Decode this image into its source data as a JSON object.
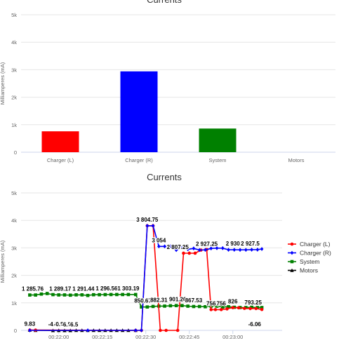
{
  "chart_data": [
    {
      "type": "bar",
      "title": "Currents",
      "ylabel": "Milliamperes (mA)",
      "categories": [
        "Charger (L)",
        "Charger (R)",
        "System",
        "Motors"
      ],
      "values": [
        760,
        2940,
        860,
        0
      ],
      "colors": [
        "#ff0000",
        "#0000ff",
        "#008000",
        "#000000"
      ],
      "ylim": [
        0,
        5000
      ],
      "yticks": [
        "0",
        "1k",
        "2k",
        "3k",
        "4k",
        "5k"
      ],
      "grid": true
    },
    {
      "type": "line",
      "title": "Currents",
      "ylabel": "Milliamperes (mA)",
      "ylim": [
        0,
        5000
      ],
      "yticks": [
        "0",
        "1k",
        "2k",
        "3k",
        "4k",
        "5k"
      ],
      "xticks": [
        "00:22:00",
        "00:22:15",
        "00:22:30",
        "00:22:45",
        "00:23:00"
      ],
      "xtick_values": [
        90,
        105,
        120,
        135,
        150
      ],
      "x_unit": "seconds after 00:20:30",
      "legend_position": "right",
      "grid": true,
      "series": [
        {
          "name": "Charger (L)",
          "color": "#ff0000",
          "marker": "circle",
          "x": [
            80,
            82,
            116.5,
            118.5,
            120.5,
            122.5,
            125,
            127,
            131,
            133,
            135,
            137,
            139,
            141,
            142.5,
            144,
            146,
            148,
            150,
            152,
            154,
            156,
            158,
            160
          ],
          "y": [
            9.83,
            9.83,
            0,
            0,
            3804.75,
            3804.75,
            0,
            0,
            0,
            2807.25,
            2807.25,
            2807.25,
            2920,
            2940,
            756,
            756,
            756,
            780,
            826,
            820,
            800,
            793.25,
            793.25,
            760
          ]
        },
        {
          "name": "Charger (R)",
          "color": "#0000ff",
          "marker": "diamond",
          "x": [
            80,
            100,
            116.5,
            118.5,
            120.5,
            122.5,
            124.5,
            126.5,
            128.5,
            130.5,
            132.5,
            134.5,
            136.5,
            138.5,
            140.5,
            142.5,
            144.5,
            146.5,
            148.5,
            150.5,
            152.5,
            154.5,
            156.5,
            158.5,
            160
          ],
          "y": [
            0,
            0,
            0,
            0,
            3804.75,
            3804.75,
            3054,
            3054,
            3054,
            2920,
            3000,
            2950,
            2980,
            2920,
            2927.25,
            2980,
            2990,
            2990,
            2930,
            2930,
            2927.5,
            2927.5,
            2935,
            2935,
            2960
          ]
        },
        {
          "name": "System",
          "color": "#008000",
          "marker": "square",
          "x": [
            80,
            82,
            84,
            86,
            88,
            90,
            92,
            94,
            96,
            98,
            100,
            102,
            104,
            106,
            108,
            110,
            112,
            114,
            116.5,
            118.5,
            120.5,
            122.5,
            124.5,
            126.5,
            128.5,
            130.5,
            132.5,
            134.5,
            136.5,
            138.5,
            140.5,
            142.5,
            144.5,
            146.5,
            148.5,
            150.5,
            152.5,
            154.5,
            156.5,
            158.5,
            160
          ],
          "y": [
            1285.76,
            1285.76,
            1320,
            1340,
            1300,
            1289.17,
            1289.17,
            1280,
            1291.44,
            1291.44,
            1270,
            1296.56,
            1296.56,
            1300,
            1303.19,
            1303.19,
            1303.19,
            1303.19,
            1303.19,
            850.67,
            850.67,
            870,
            882.31,
            882.31,
            895,
            901.26,
            901.26,
            880,
            867.53,
            867.53,
            860,
            880,
            880,
            850,
            860,
            840,
            830,
            830,
            840,
            830,
            830
          ]
        },
        {
          "name": "Motors",
          "color": "#000000",
          "marker": "triangle",
          "x": [
            80,
            82,
            88,
            90,
            92,
            94,
            96,
            98,
            100,
            102,
            104,
            106,
            108,
            110,
            112,
            114,
            116.5
          ],
          "y": [
            9.83,
            0,
            -4.3,
            -0.88,
            -6.5,
            -6.5,
            0,
            0,
            0,
            0,
            0,
            0,
            0,
            0,
            0,
            0,
            0
          ]
        }
      ],
      "data_labels": [
        {
          "text": "9.83",
          "x": 80,
          "y": 9.83
        },
        {
          "text": "-4.3",
          "x": 88,
          "y": -4.3
        },
        {
          "text": "-0.88",
          "x": 90.5,
          "y": -0.88
        },
        {
          "text": "-6.5",
          "x": 92.5,
          "y": -6.5
        },
        {
          "text": "-6.5",
          "x": 95,
          "y": -6.5
        },
        {
          "text": "1 285.76",
          "x": 81,
          "y": 1285.76
        },
        {
          "text": "1 289.17",
          "x": 90.5,
          "y": 1289.17
        },
        {
          "text": "1 291.44",
          "x": 98.5,
          "y": 1291.44
        },
        {
          "text": "1 296.56",
          "x": 106.5,
          "y": 1296.56
        },
        {
          "text": "1 303.19",
          "x": 114,
          "y": 1303.19
        },
        {
          "text": "3 804.75",
          "x": 120.5,
          "y": 3804.75
        },
        {
          "text": "3 054",
          "x": 124.5,
          "y": 3054
        },
        {
          "text": "850.67",
          "x": 119,
          "y": 850.67
        },
        {
          "text": "882.31",
          "x": 124.5,
          "y": 882.31
        },
        {
          "text": "901.26",
          "x": 131,
          "y": 901.26
        },
        {
          "text": "867.53",
          "x": 136.5,
          "y": 867.53
        },
        {
          "text": "2 807.25",
          "x": 131,
          "y": 2807.25
        },
        {
          "text": "2 927.25",
          "x": 141,
          "y": 2927.25
        },
        {
          "text": "2 930",
          "x": 150,
          "y": 2930
        },
        {
          "text": "2 927.5",
          "x": 156,
          "y": 2927.5
        },
        {
          "text": "756",
          "x": 142.5,
          "y": 756
        },
        {
          "text": "756",
          "x": 146,
          "y": 756
        },
        {
          "text": "826",
          "x": 150,
          "y": 826
        },
        {
          "text": "793.25",
          "x": 157,
          "y": 793.25
        },
        {
          "text": "-6.06",
          "x": 157.5,
          "y": -6.06
        }
      ]
    }
  ]
}
